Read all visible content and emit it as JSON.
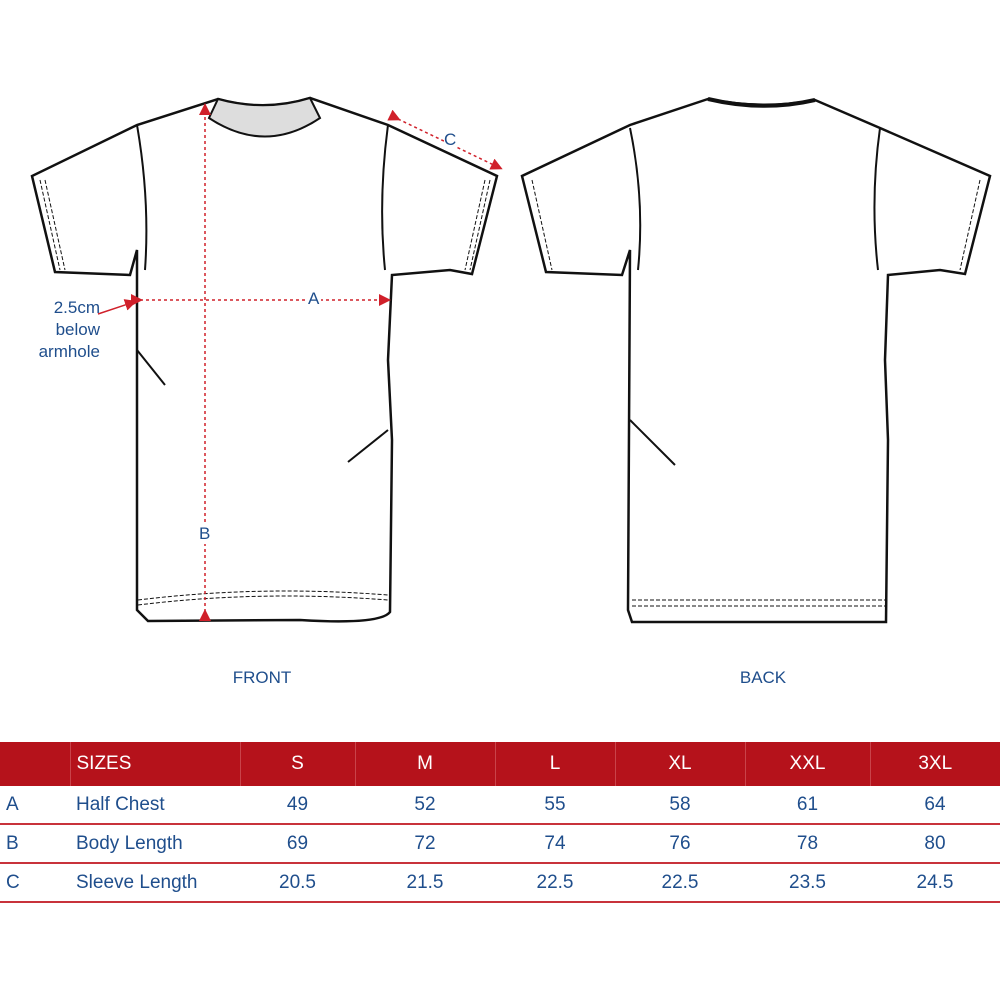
{
  "diagram": {
    "annotation": "2.5cm below armhole",
    "markers": {
      "a": "A",
      "b": "B",
      "c": "C"
    },
    "views": {
      "front": "FRONT",
      "back": "BACK"
    },
    "colors": {
      "header": "#b5121b",
      "text": "#1f4e8c",
      "arrow": "#d0202a"
    }
  },
  "table": {
    "header": {
      "code": "",
      "label": "SIZES",
      "sizes": [
        "S",
        "M",
        "L",
        "XL",
        "XXL",
        "3XL"
      ]
    },
    "rows": [
      {
        "code": "A",
        "label": "Half Chest",
        "values": [
          "49",
          "52",
          "55",
          "58",
          "61",
          "64"
        ]
      },
      {
        "code": "B",
        "label": "Body Length",
        "values": [
          "69",
          "72",
          "74",
          "76",
          "78",
          "80"
        ]
      },
      {
        "code": "C",
        "label": "Sleeve Length",
        "values": [
          "20.5",
          "21.5",
          "22.5",
          "22.5",
          "23.5",
          "24.5"
        ]
      }
    ]
  }
}
